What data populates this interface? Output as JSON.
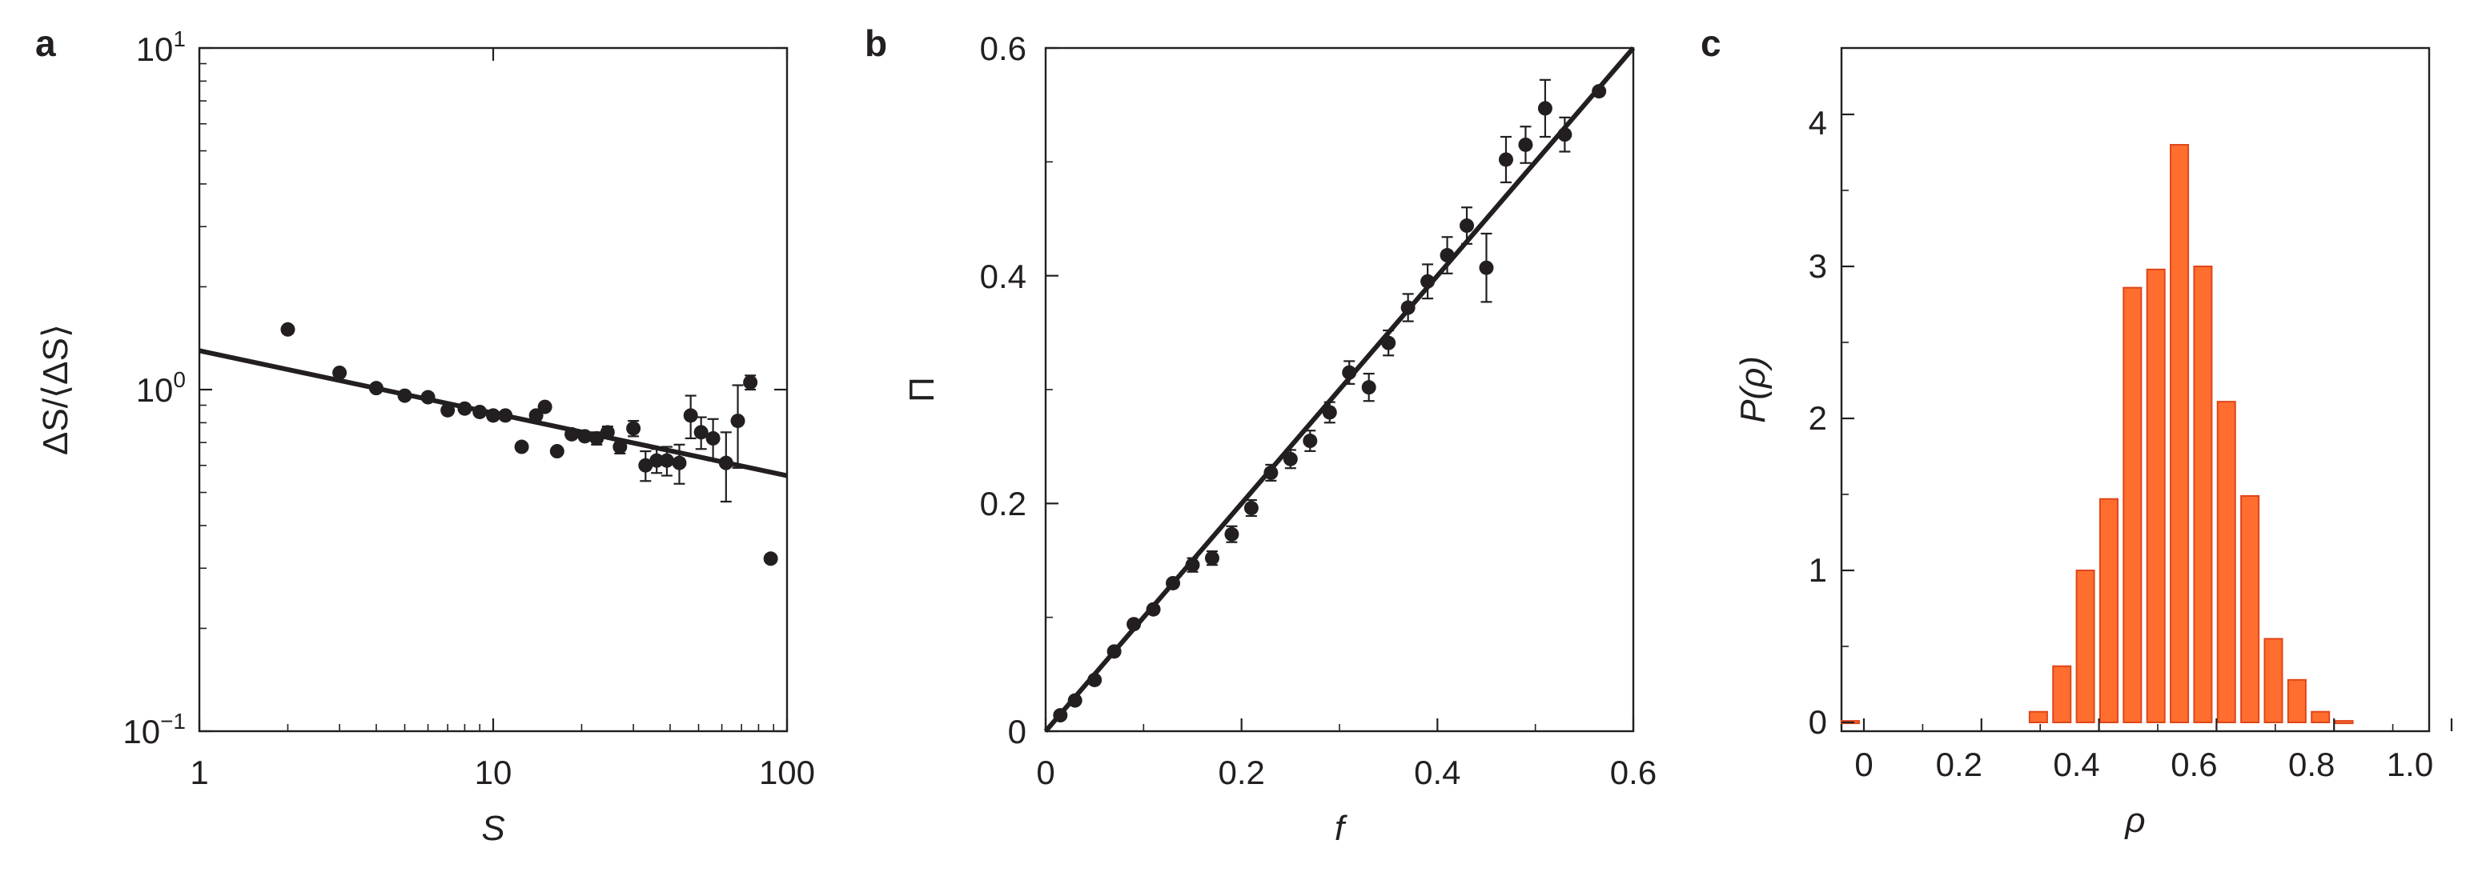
{
  "panels": {
    "a": {
      "letter": "a",
      "xlabel": "S",
      "ylabel": "ΔS/⟨ΔS⟩",
      "xticks": [
        "1",
        "10",
        "100"
      ],
      "yticks": [
        {
          "base": "10",
          "exp": "1"
        },
        {
          "base": "10",
          "exp": "0"
        },
        {
          "base": "10",
          "exp": "−1"
        }
      ]
    },
    "b": {
      "letter": "b",
      "xlabel": "f",
      "ylabel": "Π",
      "xticks": [
        "0",
        "0.2",
        "0.4",
        "0.6"
      ],
      "yticks": [
        "0",
        "0.2",
        "0.4",
        "0.6"
      ]
    },
    "c": {
      "letter": "c",
      "xlabel": "ρ",
      "ylabel": "P(ρ)",
      "xticks": [
        "0",
        "0.2",
        "0.4",
        "0.6",
        "0.8",
        "1.0"
      ],
      "yticks": [
        "0",
        "1",
        "2",
        "3",
        "4"
      ]
    }
  },
  "colors": {
    "ink": "#231f20",
    "bar_fill": "#ff6e2e",
    "bar_stroke": "#e0451b"
  },
  "chart_data": [
    {
      "type": "scatter",
      "panel": "a",
      "xlabel": "S",
      "ylabel": "ΔS/⟨ΔS⟩",
      "xscale": "log",
      "yscale": "log",
      "xlim": [
        1,
        100
      ],
      "ylim": [
        0.1,
        10
      ],
      "grid": false,
      "points": [
        {
          "x": 2,
          "y": 1.5
        },
        {
          "x": 3,
          "y": 1.12
        },
        {
          "x": 4,
          "y": 1.01
        },
        {
          "x": 5,
          "y": 0.96
        },
        {
          "x": 6,
          "y": 0.95
        },
        {
          "x": 7,
          "y": 0.87
        },
        {
          "x": 8,
          "y": 0.88
        },
        {
          "x": 9,
          "y": 0.86
        },
        {
          "x": 10,
          "y": 0.84
        },
        {
          "x": 11,
          "y": 0.84
        },
        {
          "x": 12.5,
          "y": 0.68
        },
        {
          "x": 14,
          "y": 0.84
        },
        {
          "x": 15,
          "y": 0.89
        },
        {
          "x": 16.5,
          "y": 0.66
        },
        {
          "x": 18.5,
          "y": 0.74
        },
        {
          "x": 20.5,
          "y": 0.73
        },
        {
          "x": 22.5,
          "y": 0.72,
          "err": 0.03
        },
        {
          "x": 24.5,
          "y": 0.75,
          "err": 0.03
        },
        {
          "x": 27,
          "y": 0.68,
          "err": 0.03
        },
        {
          "x": 30,
          "y": 0.77,
          "err": 0.04
        },
        {
          "x": 33,
          "y": 0.6,
          "err": 0.06
        },
        {
          "x": 36,
          "y": 0.62,
          "err": 0.05
        },
        {
          "x": 39,
          "y": 0.62,
          "err": 0.06
        },
        {
          "x": 43,
          "y": 0.61,
          "err": 0.08
        },
        {
          "x": 47,
          "y": 0.84,
          "err": 0.12
        },
        {
          "x": 51,
          "y": 0.75,
          "err": 0.08
        },
        {
          "x": 56,
          "y": 0.72,
          "err": 0.1
        },
        {
          "x": 62,
          "y": 0.61,
          "err": 0.14
        },
        {
          "x": 68,
          "y": 0.81,
          "err": 0.22
        },
        {
          "x": 75,
          "y": 1.05,
          "err": 0.05
        },
        {
          "x": 88,
          "y": 0.32
        }
      ],
      "fit_line": [
        {
          "x": 1,
          "y": 1.3
        },
        {
          "x": 100,
          "y": 0.56
        }
      ]
    },
    {
      "type": "scatter",
      "panel": "b",
      "xlabel": "f",
      "ylabel": "Π",
      "xlim": [
        0,
        0.6
      ],
      "ylim": [
        0,
        0.6
      ],
      "grid": false,
      "points": [
        {
          "x": 0.015,
          "y": 0.014
        },
        {
          "x": 0.03,
          "y": 0.027
        },
        {
          "x": 0.05,
          "y": 0.045
        },
        {
          "x": 0.07,
          "y": 0.07
        },
        {
          "x": 0.09,
          "y": 0.094
        },
        {
          "x": 0.11,
          "y": 0.107
        },
        {
          "x": 0.13,
          "y": 0.13
        },
        {
          "x": 0.15,
          "y": 0.146,
          "err": 0.006
        },
        {
          "x": 0.17,
          "y": 0.152,
          "err": 0.006
        },
        {
          "x": 0.19,
          "y": 0.173,
          "err": 0.007
        },
        {
          "x": 0.21,
          "y": 0.196,
          "err": 0.007
        },
        {
          "x": 0.23,
          "y": 0.227,
          "err": 0.007
        },
        {
          "x": 0.25,
          "y": 0.239,
          "err": 0.008
        },
        {
          "x": 0.27,
          "y": 0.255,
          "err": 0.009
        },
        {
          "x": 0.29,
          "y": 0.28,
          "err": 0.009
        },
        {
          "x": 0.31,
          "y": 0.315,
          "err": 0.01
        },
        {
          "x": 0.33,
          "y": 0.302,
          "err": 0.012
        },
        {
          "x": 0.35,
          "y": 0.341,
          "err": 0.011
        },
        {
          "x": 0.37,
          "y": 0.372,
          "err": 0.012
        },
        {
          "x": 0.39,
          "y": 0.395,
          "err": 0.015
        },
        {
          "x": 0.41,
          "y": 0.418,
          "err": 0.016
        },
        {
          "x": 0.43,
          "y": 0.444,
          "err": 0.016
        },
        {
          "x": 0.45,
          "y": 0.407,
          "err": 0.03
        },
        {
          "x": 0.47,
          "y": 0.502,
          "err": 0.02
        },
        {
          "x": 0.49,
          "y": 0.515,
          "err": 0.016
        },
        {
          "x": 0.51,
          "y": 0.547,
          "err": 0.025
        },
        {
          "x": 0.53,
          "y": 0.524,
          "err": 0.015
        },
        {
          "x": 0.565,
          "y": 0.562
        }
      ],
      "fit_line": [
        {
          "x": 0,
          "y": 0
        },
        {
          "x": 0.6,
          "y": 0.6
        }
      ]
    },
    {
      "type": "bar",
      "panel": "c",
      "xlabel": "ρ",
      "ylabel": "P(ρ)",
      "xlim": [
        0,
        1.0
      ],
      "ylim": [
        0,
        4.5
      ],
      "grid": false,
      "bin_width": 0.03,
      "bins": [
        {
          "x": 0.015,
          "y": 0.01
        },
        {
          "x": 0.335,
          "y": 0.07
        },
        {
          "x": 0.375,
          "y": 0.37
        },
        {
          "x": 0.415,
          "y": 1.0
        },
        {
          "x": 0.455,
          "y": 1.47
        },
        {
          "x": 0.495,
          "y": 2.86
        },
        {
          "x": 0.535,
          "y": 2.98
        },
        {
          "x": 0.575,
          "y": 3.8
        },
        {
          "x": 0.615,
          "y": 3.0
        },
        {
          "x": 0.655,
          "y": 2.11
        },
        {
          "x": 0.695,
          "y": 1.49
        },
        {
          "x": 0.735,
          "y": 0.55
        },
        {
          "x": 0.775,
          "y": 0.28
        },
        {
          "x": 0.815,
          "y": 0.07
        },
        {
          "x": 0.855,
          "y": 0.01
        }
      ]
    }
  ]
}
